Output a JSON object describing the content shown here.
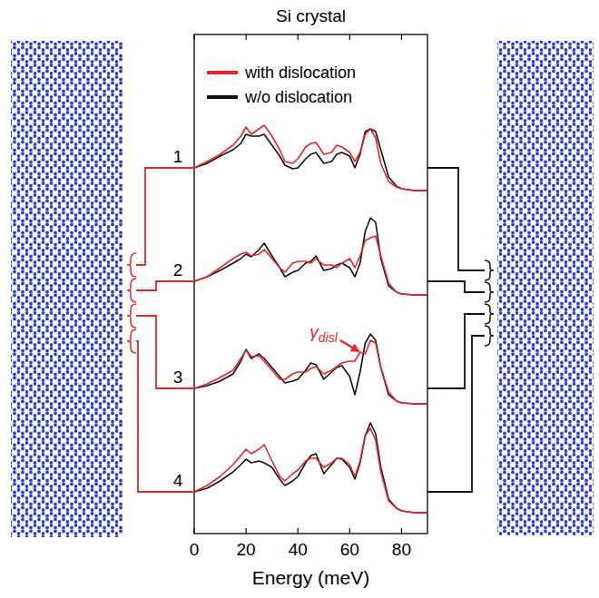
{
  "chart_data": {
    "type": "line",
    "title": "Si crystal",
    "xlabel": "Energy (meV)",
    "x": [
      0,
      5,
      10,
      15,
      18,
      20,
      22,
      25,
      27,
      30,
      33,
      35,
      38,
      40,
      43,
      45,
      47,
      50,
      53,
      55,
      57,
      60,
      62,
      64,
      66,
      68,
      70,
      72,
      75,
      78,
      80,
      85,
      90
    ],
    "xlim": [
      0,
      90
    ],
    "xticks": [
      0,
      20,
      40,
      60,
      80
    ],
    "ylim": [
      0,
      550
    ],
    "tick_labels": "x",
    "legend": "top",
    "curve_labels": [
      "1",
      "2",
      "3",
      "4"
    ],
    "annotations": [
      {
        "text": "γ",
        "sub": "disl",
        "x": 64,
        "y": 200,
        "color": "#e8262a"
      }
    ],
    "series": [
      {
        "name": "with dislocation",
        "color": "#e8262a",
        "values": [
          403,
          410,
          418,
          428,
          438,
          448,
          440,
          446,
          450,
          438,
          423,
          410,
          408,
          413,
          426,
          430,
          431,
          418,
          420,
          428,
          426,
          420,
          410,
          420,
          440,
          446,
          436,
          408,
          388,
          382,
          380,
          378,
          378
        ]
      },
      {
        "name": "w/o dislocation",
        "color": "#111111",
        "values": [
          403,
          408,
          416,
          423,
          430,
          440,
          438,
          438,
          440,
          428,
          416,
          406,
          402,
          403,
          413,
          418,
          420,
          408,
          410,
          418,
          420,
          416,
          403,
          418,
          443,
          446,
          443,
          423,
          393,
          383,
          380,
          378,
          378
        ]
      },
      {
        "color": "#e8262a",
        "values": [
          278,
          283,
          293,
          303,
          308,
          310,
          306,
          308,
          313,
          303,
          293,
          288,
          298,
          300,
          300,
          298,
          303,
          296,
          296,
          293,
          298,
          303,
          293,
          306,
          323,
          326,
          328,
          306,
          276,
          266,
          264,
          263,
          263
        ]
      },
      {
        "color": "#111111",
        "values": [
          278,
          283,
          290,
          298,
          303,
          308,
          305,
          313,
          320,
          306,
          293,
          283,
          288,
          290,
          298,
          300,
          306,
          290,
          292,
          296,
          298,
          293,
          283,
          298,
          333,
          348,
          343,
          303,
          273,
          266,
          264,
          263,
          263
        ]
      },
      {
        "color": "#e8262a",
        "values": [
          160,
          165,
          172,
          180,
          193,
          202,
          195,
          196,
          190,
          180,
          170,
          170,
          176,
          178,
          178,
          182,
          184,
          176,
          180,
          184,
          188,
          190,
          190,
          200,
          198,
          213,
          210,
          183,
          156,
          146,
          144,
          143,
          143
        ]
      },
      {
        "color": "#111111",
        "values": [
          160,
          163,
          168,
          176,
          190,
          203,
          193,
          198,
          193,
          183,
          173,
          166,
          168,
          170,
          180,
          188,
          186,
          170,
          178,
          183,
          185,
          173,
          153,
          178,
          210,
          220,
          213,
          183,
          153,
          146,
          144,
          143,
          143
        ]
      },
      {
        "color": "#e8262a",
        "values": [
          46,
          53,
          63,
          76,
          86,
          93,
          88,
          93,
          98,
          80,
          63,
          58,
          66,
          70,
          80,
          83,
          83,
          73,
          78,
          83,
          83,
          76,
          63,
          80,
          108,
          116,
          103,
          68,
          36,
          28,
          25,
          23,
          23
        ]
      },
      {
        "color": "#111111",
        "values": [
          46,
          50,
          58,
          68,
          76,
          82,
          78,
          80,
          78,
          73,
          60,
          53,
          58,
          63,
          78,
          86,
          88,
          66,
          76,
          83,
          82,
          73,
          60,
          78,
          108,
          122,
          110,
          73,
          38,
          28,
          25,
          23,
          23
        ]
      }
    ]
  }
}
